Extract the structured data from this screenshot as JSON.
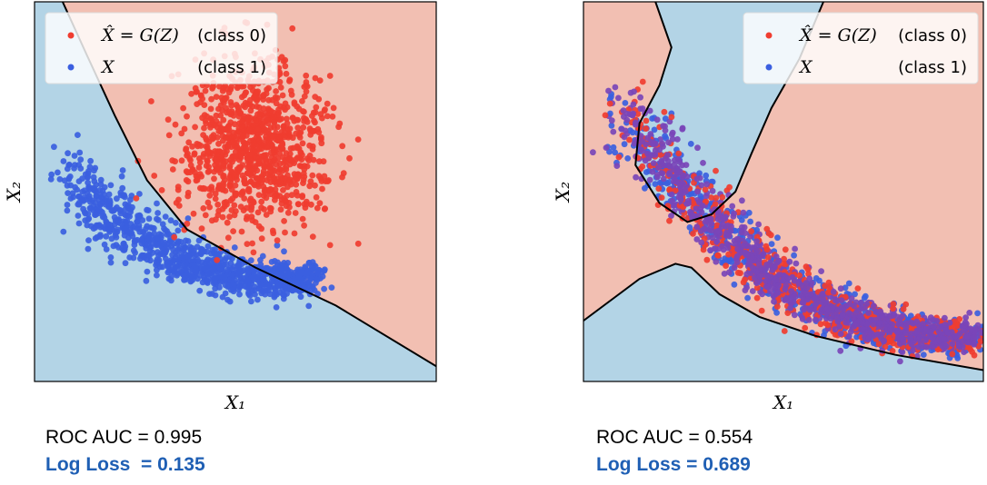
{
  "colors": {
    "real_region": "#b3d4e6",
    "fake_region": "#f2bfb2",
    "real_points": "#3b5fe0",
    "fake_points": "#f03d30",
    "mixed_points": "#7a45b8",
    "boundary": "#000000",
    "loss_text": "#1f5fb4"
  },
  "chart_data": [
    {
      "type": "scatter",
      "title": "",
      "xlabel": "X₁",
      "ylabel": "X₂",
      "grid": false,
      "legend_placement": "top-left",
      "series": [
        {
          "name_math": "X̂ = G(Z)",
          "name_class": "(class 0)",
          "color": "#f03d30",
          "cluster": {
            "shape": "blob",
            "center": [
              0.55,
              0.62
            ],
            "spread": [
              0.09,
              0.11
            ],
            "count": 1000
          }
        },
        {
          "name_math": "X",
          "name_class": "(class 1)",
          "color": "#3b5fe0",
          "cluster": {
            "shape": "banana",
            "count": 1000
          }
        }
      ],
      "decision_boundary": [
        [
          0.07,
          1.0
        ],
        [
          0.13,
          0.86
        ],
        [
          0.2,
          0.7
        ],
        [
          0.28,
          0.53
        ],
        [
          0.38,
          0.4
        ],
        [
          0.55,
          0.3
        ],
        [
          0.75,
          0.2
        ],
        [
          1.0,
          0.04
        ]
      ],
      "metrics": {
        "roc_auc": "ROC AUC = 0.995",
        "log_loss": "Log Loss  = 0.135"
      }
    },
    {
      "type": "scatter",
      "title": "",
      "xlabel": "X₁",
      "ylabel": "X₂",
      "grid": false,
      "legend_placement": "top-right",
      "series": [
        {
          "name_math": "X̂ = G(Z)",
          "name_class": "(class 0)",
          "color": "#f03d30",
          "cluster": {
            "shape": "banana",
            "count": 900
          }
        },
        {
          "name_math": "X",
          "name_class": "(class 1)",
          "color": "#3b5fe0",
          "cluster": {
            "shape": "banana",
            "count": 900
          }
        }
      ],
      "decision_boundary": [
        [
          0.0,
          0.16
        ],
        [
          0.14,
          0.27
        ],
        [
          0.23,
          0.31
        ],
        [
          0.27,
          0.3
        ],
        [
          0.34,
          0.23
        ],
        [
          0.44,
          0.17
        ],
        [
          0.58,
          0.12
        ],
        [
          0.78,
          0.07
        ],
        [
          1.0,
          0.03
        ]
      ],
      "decision_boundary_2": [
        [
          0.18,
          1.0
        ],
        [
          0.22,
          0.88
        ],
        [
          0.19,
          0.78
        ],
        [
          0.14,
          0.68
        ],
        [
          0.13,
          0.57
        ],
        [
          0.19,
          0.47
        ],
        [
          0.26,
          0.42
        ],
        [
          0.32,
          0.44
        ],
        [
          0.38,
          0.5
        ],
        [
          0.42,
          0.6
        ],
        [
          0.47,
          0.72
        ],
        [
          0.54,
          0.85
        ],
        [
          0.6,
          1.0
        ]
      ],
      "metrics": {
        "roc_auc": "ROC AUC = 0.554",
        "log_loss": "Log Loss = 0.689"
      }
    }
  ]
}
